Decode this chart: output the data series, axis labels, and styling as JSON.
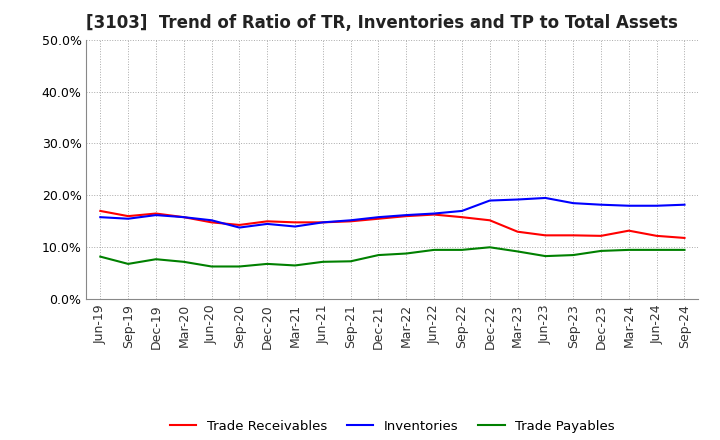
{
  "title": "[3103]  Trend of Ratio of TR, Inventories and TP to Total Assets",
  "x_labels": [
    "Jun-19",
    "Sep-19",
    "Dec-19",
    "Mar-20",
    "Jun-20",
    "Sep-20",
    "Dec-20",
    "Mar-21",
    "Jun-21",
    "Sep-21",
    "Dec-21",
    "Mar-22",
    "Jun-22",
    "Sep-22",
    "Dec-22",
    "Mar-23",
    "Jun-23",
    "Sep-23",
    "Dec-23",
    "Mar-24",
    "Jun-24",
    "Sep-24"
  ],
  "trade_receivables": [
    0.17,
    0.16,
    0.165,
    0.158,
    0.148,
    0.143,
    0.15,
    0.148,
    0.148,
    0.15,
    0.155,
    0.16,
    0.163,
    0.158,
    0.152,
    0.13,
    0.123,
    0.123,
    0.122,
    0.132,
    0.122,
    0.118
  ],
  "inventories": [
    0.158,
    0.155,
    0.162,
    0.158,
    0.152,
    0.138,
    0.145,
    0.14,
    0.148,
    0.152,
    0.158,
    0.162,
    0.165,
    0.17,
    0.19,
    0.192,
    0.195,
    0.185,
    0.182,
    0.18,
    0.18,
    0.182
  ],
  "trade_payables": [
    0.082,
    0.068,
    0.077,
    0.072,
    0.063,
    0.063,
    0.068,
    0.065,
    0.072,
    0.073,
    0.085,
    0.088,
    0.095,
    0.095,
    0.1,
    0.092,
    0.083,
    0.085,
    0.093,
    0.095,
    0.095,
    0.095
  ],
  "ylim": [
    0.0,
    0.5
  ],
  "yticks": [
    0.0,
    0.1,
    0.2,
    0.3,
    0.4,
    0.5
  ],
  "line_colors": {
    "trade_receivables": "#FF0000",
    "inventories": "#0000FF",
    "trade_payables": "#008000"
  },
  "legend_labels": [
    "Trade Receivables",
    "Inventories",
    "Trade Payables"
  ],
  "bg_color": "#FFFFFF",
  "plot_bg_color": "#FFFFFF",
  "grid_color": "#AAAAAA",
  "title_fontsize": 12,
  "tick_fontsize": 9,
  "legend_fontsize": 9.5
}
